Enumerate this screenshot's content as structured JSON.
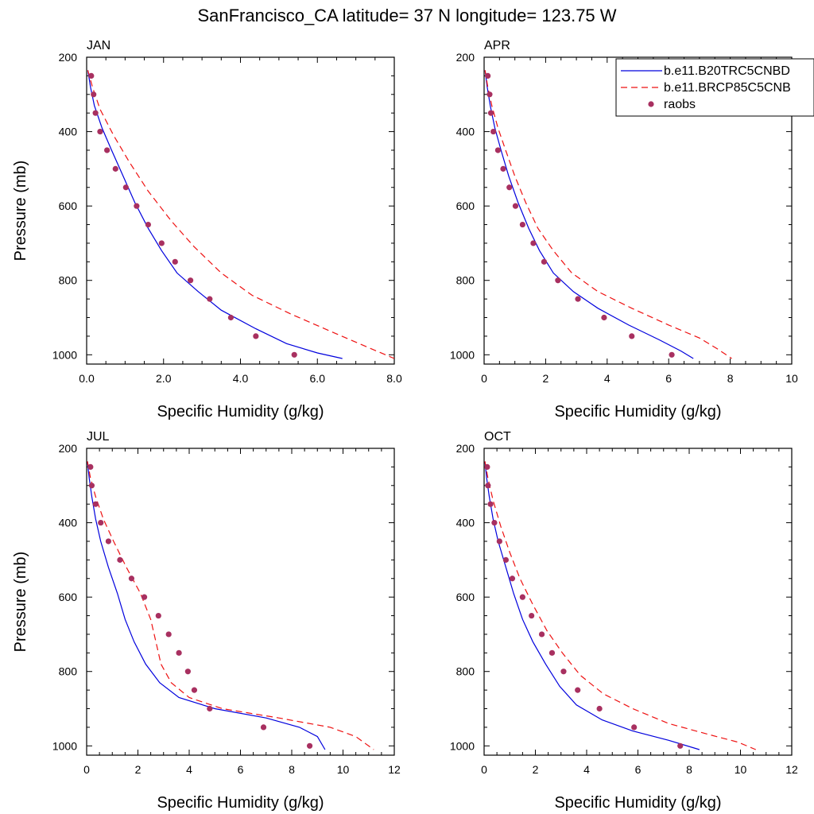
{
  "figure": {
    "title": "SanFrancisco_CA  latitude= 37 N longitude= 123.75 W"
  },
  "legend": {
    "entries": [
      {
        "label": "b.e11.B20TRC5CNBD",
        "style": "solid",
        "color": "#0000dd"
      },
      {
        "label": "b.e11.BRCP85C5CNB",
        "style": "dashed",
        "color": "#ee1111"
      },
      {
        "label": "raobs",
        "style": "marker",
        "color": "#a83060"
      }
    ]
  },
  "chart_data": [
    {
      "type": "line",
      "panel": "JAN",
      "xlabel": "Specific Humidity (g/kg)",
      "ylabel": "Pressure (mb)",
      "xlim": [
        0,
        8
      ],
      "ylim": [
        1025,
        200
      ],
      "xticks": [
        "0.0",
        "2.0",
        "4.0",
        "6.0",
        "8.0"
      ],
      "xtick_values": [
        0,
        2,
        4,
        6,
        8
      ],
      "yticks": [
        "200",
        "400",
        "600",
        "800",
        "1000"
      ],
      "ytick_values": [
        200,
        400,
        600,
        800,
        1000
      ],
      "series": [
        {
          "name": "b.e11.B20TRC5CNBD",
          "x": [
            0.03,
            0.1,
            0.2,
            0.4,
            0.65,
            0.95,
            1.25,
            1.6,
            1.95,
            2.35,
            2.9,
            3.5,
            4.4,
            5.2,
            6.0,
            6.65
          ],
          "y": [
            235,
            280,
            330,
            390,
            450,
            520,
            590,
            660,
            720,
            780,
            830,
            880,
            930,
            970,
            995,
            1010
          ]
        },
        {
          "name": "b.e11.BRCP85C5CNB",
          "x": [
            0.03,
            0.15,
            0.35,
            0.7,
            1.1,
            1.6,
            2.2,
            2.8,
            3.5,
            4.3,
            5.3,
            6.3,
            7.2,
            8.0
          ],
          "y": [
            235,
            280,
            340,
            410,
            480,
            560,
            640,
            710,
            780,
            840,
            890,
            935,
            975,
            1010
          ]
        },
        {
          "name": "raobs",
          "x": [
            0.12,
            0.18,
            0.23,
            0.35,
            0.53,
            0.75,
            1.02,
            1.3,
            1.6,
            1.95,
            2.3,
            2.7,
            3.2,
            3.75,
            4.4,
            5.4
          ],
          "y": [
            250,
            300,
            350,
            400,
            450,
            500,
            550,
            600,
            650,
            700,
            750,
            800,
            850,
            900,
            950,
            1000
          ]
        }
      ]
    },
    {
      "type": "line",
      "panel": "APR",
      "xlabel": "Specific Humidity (g/kg)",
      "ylabel": "",
      "xlim": [
        0,
        10
      ],
      "ylim": [
        1025,
        200
      ],
      "xticks": [
        "0",
        "2",
        "4",
        "6",
        "8",
        "10"
      ],
      "xtick_values": [
        0,
        2,
        4,
        6,
        8,
        10
      ],
      "yticks": [
        "200",
        "400",
        "600",
        "800",
        "1000"
      ],
      "ytick_values": [
        200,
        400,
        600,
        800,
        1000
      ],
      "series": [
        {
          "name": "b.e11.B20TRC5CNBD",
          "x": [
            0.03,
            0.1,
            0.2,
            0.35,
            0.55,
            0.8,
            1.1,
            1.45,
            1.8,
            2.25,
            2.9,
            3.7,
            4.7,
            5.7,
            6.4,
            6.8
          ],
          "y": [
            235,
            280,
            330,
            390,
            450,
            520,
            590,
            660,
            720,
            780,
            830,
            875,
            920,
            960,
            990,
            1010
          ]
        },
        {
          "name": "b.e11.BRCP85C5CNB",
          "x": [
            0.03,
            0.12,
            0.25,
            0.45,
            0.7,
            1.0,
            1.35,
            1.75,
            2.25,
            2.85,
            3.7,
            4.8,
            6.0,
            7.0,
            7.6,
            8.05
          ],
          "y": [
            235,
            280,
            330,
            390,
            450,
            520,
            590,
            660,
            720,
            780,
            830,
            875,
            920,
            955,
            985,
            1010
          ]
        },
        {
          "name": "raobs",
          "x": [
            0.12,
            0.18,
            0.22,
            0.3,
            0.45,
            0.62,
            0.82,
            1.02,
            1.25,
            1.6,
            1.95,
            2.4,
            3.05,
            3.9,
            4.8,
            6.1
          ],
          "y": [
            250,
            300,
            350,
            400,
            450,
            500,
            550,
            600,
            650,
            700,
            750,
            800,
            850,
            900,
            950,
            1000
          ]
        }
      ]
    },
    {
      "type": "line",
      "panel": "JUL",
      "xlabel": "Specific Humidity (g/kg)",
      "ylabel": "Pressure (mb)",
      "xlim": [
        0,
        12
      ],
      "ylim": [
        1025,
        200
      ],
      "xticks": [
        "0",
        "2",
        "4",
        "6",
        "8",
        "10",
        "12"
      ],
      "xtick_values": [
        0,
        2,
        4,
        6,
        8,
        10,
        12
      ],
      "yticks": [
        "200",
        "400",
        "600",
        "800",
        "1000"
      ],
      "ytick_values": [
        200,
        400,
        600,
        800,
        1000
      ],
      "series": [
        {
          "name": "b.e11.B20TRC5CNBD",
          "x": [
            0.03,
            0.1,
            0.2,
            0.35,
            0.55,
            0.85,
            1.2,
            1.5,
            1.85,
            2.3,
            2.85,
            3.6,
            5.0,
            7.0,
            8.3,
            9.0,
            9.3
          ],
          "y": [
            235,
            280,
            330,
            390,
            450,
            520,
            590,
            660,
            720,
            780,
            830,
            870,
            900,
            925,
            950,
            975,
            1010
          ]
        },
        {
          "name": "b.e11.BRCP85C5CNB",
          "x": [
            0.03,
            0.15,
            0.35,
            0.65,
            1.05,
            1.55,
            2.1,
            2.5,
            2.7,
            2.9,
            3.3,
            4.0,
            5.3,
            7.5,
            9.5,
            10.5,
            11.2
          ],
          "y": [
            235,
            280,
            330,
            390,
            450,
            520,
            590,
            660,
            720,
            780,
            830,
            870,
            900,
            925,
            950,
            975,
            1010
          ]
        },
        {
          "name": "raobs",
          "x": [
            0.15,
            0.2,
            0.35,
            0.55,
            0.85,
            1.3,
            1.75,
            2.25,
            2.8,
            3.2,
            3.6,
            3.95,
            4.2,
            4.8,
            6.9,
            8.7
          ],
          "y": [
            250,
            300,
            350,
            400,
            450,
            500,
            550,
            600,
            650,
            700,
            750,
            800,
            850,
            900,
            950,
            1000
          ]
        }
      ]
    },
    {
      "type": "line",
      "panel": "OCT",
      "xlabel": "Specific Humidity (g/kg)",
      "ylabel": "",
      "xlim": [
        0,
        12
      ],
      "ylim": [
        1025,
        200
      ],
      "xticks": [
        "0",
        "2",
        "4",
        "6",
        "8",
        "10",
        "12"
      ],
      "xtick_values": [
        0,
        2,
        4,
        6,
        8,
        10,
        12
      ],
      "yticks": [
        "200",
        "400",
        "600",
        "800",
        "1000"
      ],
      "ytick_values": [
        200,
        400,
        600,
        800,
        1000
      ],
      "series": [
        {
          "name": "b.e11.B20TRC5CNBD",
          "x": [
            0.03,
            0.1,
            0.2,
            0.35,
            0.55,
            0.85,
            1.15,
            1.5,
            1.9,
            2.4,
            2.95,
            3.6,
            4.6,
            5.8,
            7.2,
            8.4
          ],
          "y": [
            235,
            280,
            330,
            390,
            450,
            520,
            590,
            660,
            720,
            780,
            840,
            890,
            930,
            960,
            985,
            1010
          ]
        },
        {
          "name": "b.e11.BRCP85C5CNB",
          "x": [
            0.03,
            0.15,
            0.35,
            0.65,
            1.0,
            1.4,
            1.9,
            2.45,
            3.05,
            3.75,
            4.65,
            5.8,
            7.2,
            8.8,
            9.9,
            10.6
          ],
          "y": [
            235,
            280,
            340,
            410,
            480,
            550,
            620,
            690,
            750,
            810,
            860,
            900,
            940,
            970,
            990,
            1010
          ]
        },
        {
          "name": "raobs",
          "x": [
            0.12,
            0.15,
            0.25,
            0.4,
            0.6,
            0.85,
            1.1,
            1.5,
            1.85,
            2.25,
            2.65,
            3.1,
            3.65,
            4.5,
            5.85,
            7.65
          ],
          "y": [
            250,
            300,
            350,
            400,
            450,
            500,
            550,
            600,
            650,
            700,
            750,
            800,
            850,
            900,
            950,
            1000
          ]
        }
      ]
    }
  ]
}
